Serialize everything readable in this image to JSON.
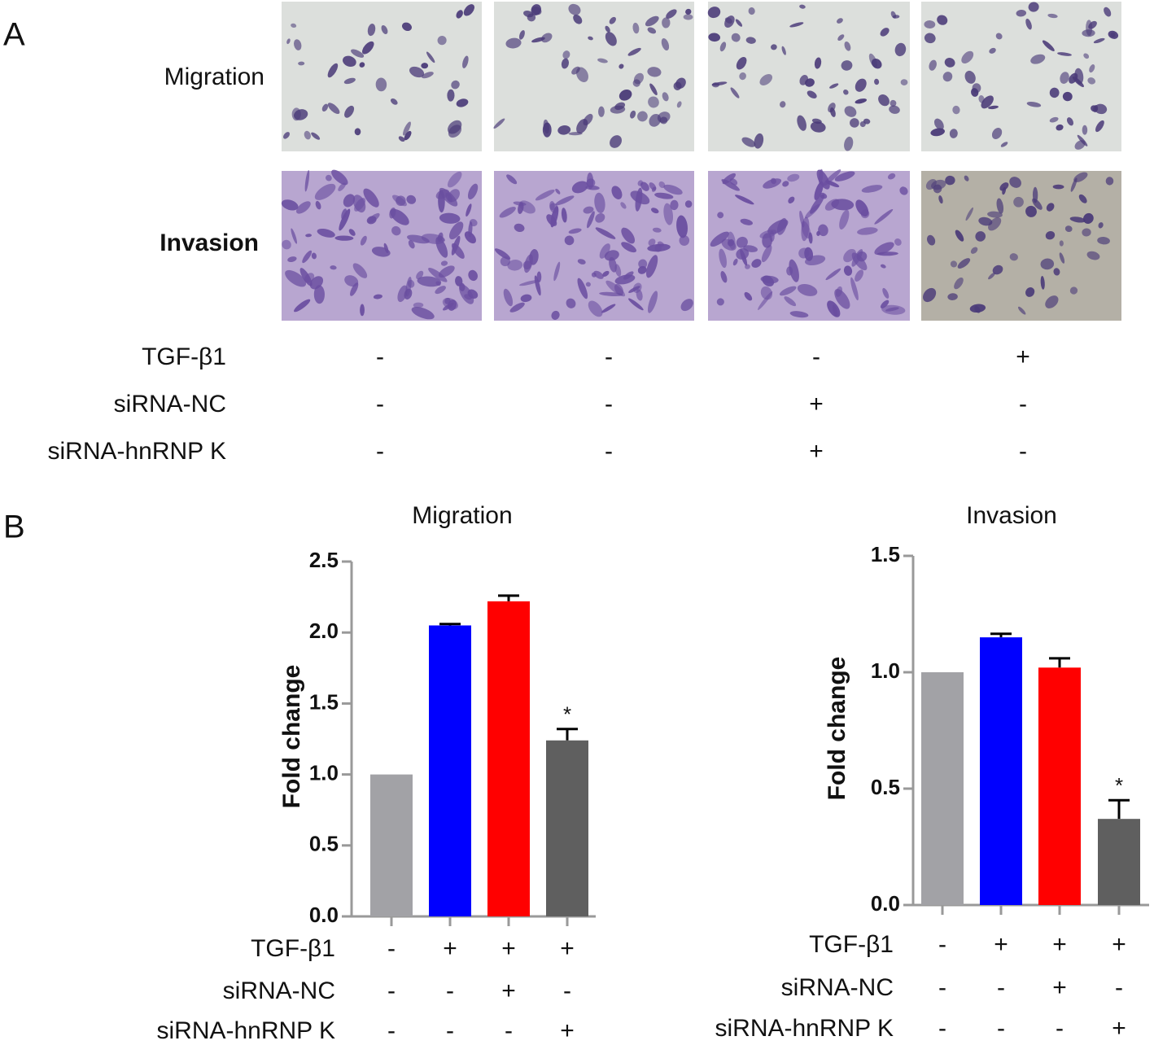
{
  "panel_labels": [
    "A",
    "B"
  ],
  "panel_a": {
    "row_labels": [
      "Migration",
      "Invasion"
    ],
    "conditions": [
      {
        "name": "TGF-β1",
        "signs": [
          "-",
          "-",
          "-",
          "+"
        ]
      },
      {
        "name": "siRNA-NC",
        "signs": [
          "-",
          "-",
          "+",
          "-"
        ]
      },
      {
        "name": "siRNA-hnRNP K",
        "signs": [
          "-",
          "-",
          "+",
          "-"
        ]
      }
    ]
  },
  "chart_data": [
    {
      "type": "bar",
      "title": "Migration",
      "y_label": "Fold change",
      "values": [
        1.0,
        2.05,
        2.22,
        1.24
      ],
      "errors": [
        0,
        0.01,
        0.04,
        0.08
      ],
      "colors": [
        "#a2a2a6",
        "#0000ff",
        "#ff0000",
        "#5f5f5f"
      ],
      "significance": [
        null,
        null,
        null,
        "*"
      ],
      "ylim": [
        0,
        2.5
      ],
      "yticks": [
        {
          "value": 0,
          "label": "0.0"
        },
        0.5,
        {
          "value": 1,
          "label": "1.0"
        },
        1.5,
        {
          "value": 2,
          "label": "2.0"
        },
        2.5
      ],
      "conditions": [
        {
          "name": "TGF-β1",
          "signs": [
            "-",
            "+",
            "+",
            "+"
          ]
        },
        {
          "name": "siRNA-NC",
          "signs": [
            "-",
            "-",
            "+",
            "-"
          ]
        },
        {
          "name": "siRNA-hnRNP K",
          "signs": [
            "-",
            "-",
            "-",
            "+"
          ]
        }
      ]
    },
    {
      "type": "bar",
      "title": "Invasion",
      "y_label": "Fold change",
      "values": [
        1.0,
        1.15,
        1.02,
        0.37
      ],
      "errors": [
        0,
        0.015,
        0.04,
        0.08
      ],
      "colors": [
        "#a2a2a6",
        "#0000ff",
        "#ff0000",
        "#5f5f5f"
      ],
      "significance": [
        null,
        null,
        null,
        "*"
      ],
      "ylim": [
        0,
        1.5
      ],
      "yticks": [
        {
          "value": 0,
          "label": "0.0"
        },
        0.5,
        {
          "value": 1,
          "label": "1.0"
        },
        1.5
      ],
      "conditions": [
        {
          "name": "TGF-β1",
          "signs": [
            "-",
            "+",
            "+",
            "+"
          ]
        },
        {
          "name": "siRNA-NC",
          "signs": [
            "-",
            "-",
            "+",
            "-"
          ]
        },
        {
          "name": "siRNA-hnRNP K",
          "signs": [
            "-",
            "-",
            "-",
            "+"
          ]
        }
      ]
    }
  ]
}
